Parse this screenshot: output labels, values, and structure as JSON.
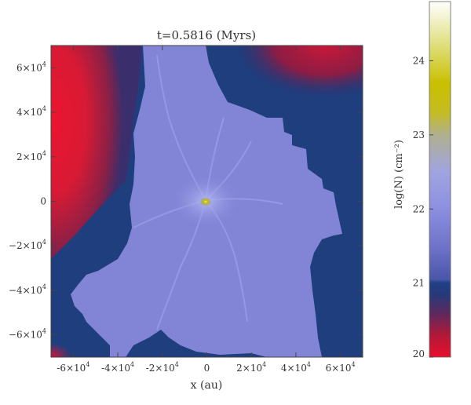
{
  "title": "t=0.5816 (Myrs)",
  "xlabel": "x (au)",
  "x_ticks": [
    {
      "value": -60000,
      "label_base": "-6×10",
      "label_exp": "4"
    },
    {
      "value": -40000,
      "label_base": "-4×10",
      "label_exp": "4"
    },
    {
      "value": -20000,
      "label_base": "-2×10",
      "label_exp": "4"
    },
    {
      "value": 0,
      "label_base": "0",
      "label_exp": ""
    },
    {
      "value": 20000,
      "label_base": "2×10",
      "label_exp": "4"
    },
    {
      "value": 40000,
      "label_base": "4×10",
      "label_exp": "4"
    },
    {
      "value": 60000,
      "label_base": "6×10",
      "label_exp": "4"
    }
  ],
  "y_ticks": [
    {
      "value": 60000,
      "label_base": "6×10",
      "label_exp": "4"
    },
    {
      "value": 40000,
      "label_base": "4×10",
      "label_exp": "4"
    },
    {
      "value": 20000,
      "label_base": "2×10",
      "label_exp": "4"
    },
    {
      "value": 0,
      "label_base": "0",
      "label_exp": ""
    },
    {
      "value": -20000,
      "label_base": "−2×10",
      "label_exp": "4"
    },
    {
      "value": -40000,
      "label_base": "−4×10",
      "label_exp": "4"
    },
    {
      "value": -60000,
      "label_base": "−6×10",
      "label_exp": "4"
    }
  ],
  "colorbar": {
    "label": "log(N) (cm⁻²)",
    "ticks": [
      {
        "value": 20,
        "label": "20"
      },
      {
        "value": 21,
        "label": "21"
      },
      {
        "value": 22,
        "label": "22"
      },
      {
        "value": 23,
        "label": "23"
      },
      {
        "value": 24,
        "label": "24"
      }
    ],
    "range": [
      20,
      24.8
    ],
    "stops": [
      {
        "value": 20.0,
        "color": "#e8102a"
      },
      {
        "value": 20.3,
        "color": "#b01838"
      },
      {
        "value": 20.6,
        "color": "#5a2a5e"
      },
      {
        "value": 20.85,
        "color": "#253a7a"
      },
      {
        "value": 21.0,
        "color": "#1f3f86"
      },
      {
        "value": 21.05,
        "color": "#4a56a8"
      },
      {
        "value": 21.5,
        "color": "#6f74c8"
      },
      {
        "value": 22.0,
        "color": "#8c8fe0"
      },
      {
        "value": 22.5,
        "color": "#a0a4e0"
      },
      {
        "value": 23.0,
        "color": "#b0b090"
      },
      {
        "value": 23.3,
        "color": "#c4bc22"
      },
      {
        "value": 23.7,
        "color": "#c9c000"
      },
      {
        "value": 24.2,
        "color": "#dede7a"
      },
      {
        "value": 24.8,
        "color": "#ffffff"
      }
    ]
  },
  "colors": {
    "background_red": "#e01632",
    "dark_blue": "#1f3e7e",
    "cloud": "#8285d6",
    "core": "#c8c000"
  }
}
